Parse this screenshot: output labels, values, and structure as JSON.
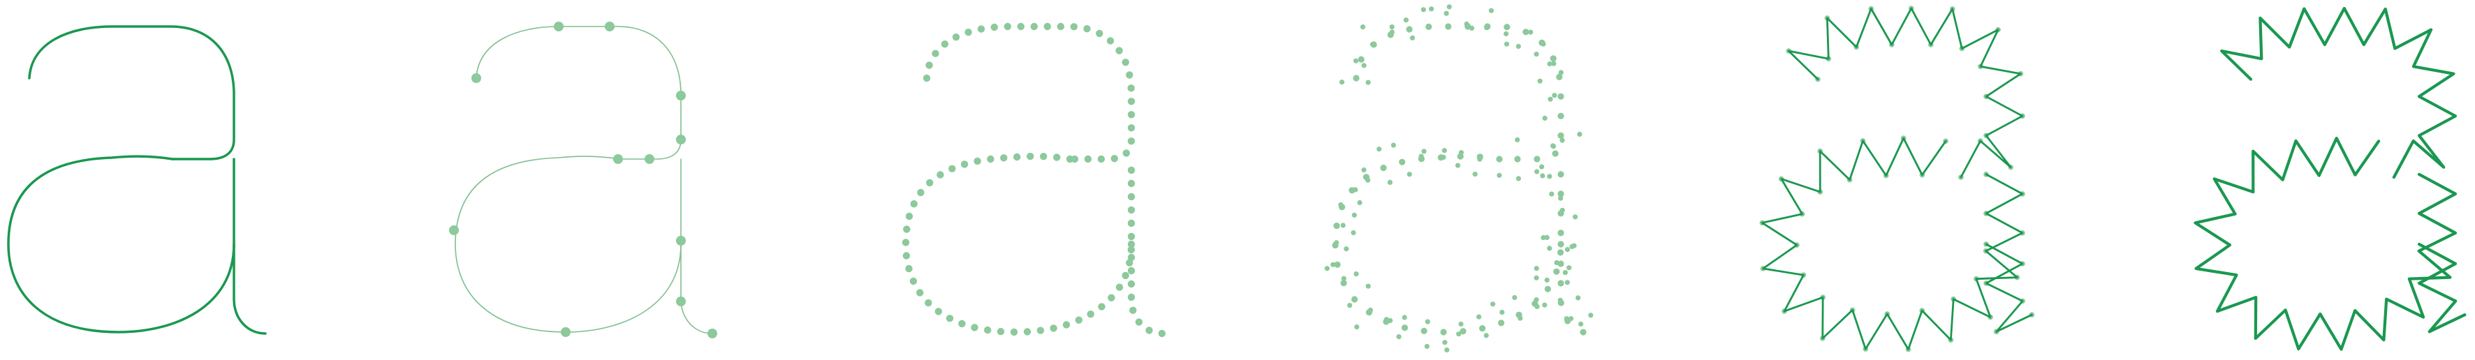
{
  "colors": {
    "background": "#ffffff",
    "stroke_dark": "#1a9850",
    "stroke_light": "#7fbf8e",
    "point_fill": "#8cc99b"
  },
  "panels": [
    {
      "name": "glyph-outline",
      "glyph": "a",
      "stage": "outline"
    },
    {
      "name": "glyph-control-points",
      "glyph": "a",
      "stage": "bezier-anchors"
    },
    {
      "name": "glyph-resampled-points",
      "glyph": "a",
      "stage": "resampled"
    },
    {
      "name": "glyph-jittered-points",
      "glyph": "a",
      "stage": "jittered"
    },
    {
      "name": "glyph-zigzag-with-points",
      "glyph": "a",
      "stage": "zigzag-points"
    },
    {
      "name": "glyph-zigzag-final",
      "glyph": "a",
      "stage": "zigzag"
    }
  ]
}
